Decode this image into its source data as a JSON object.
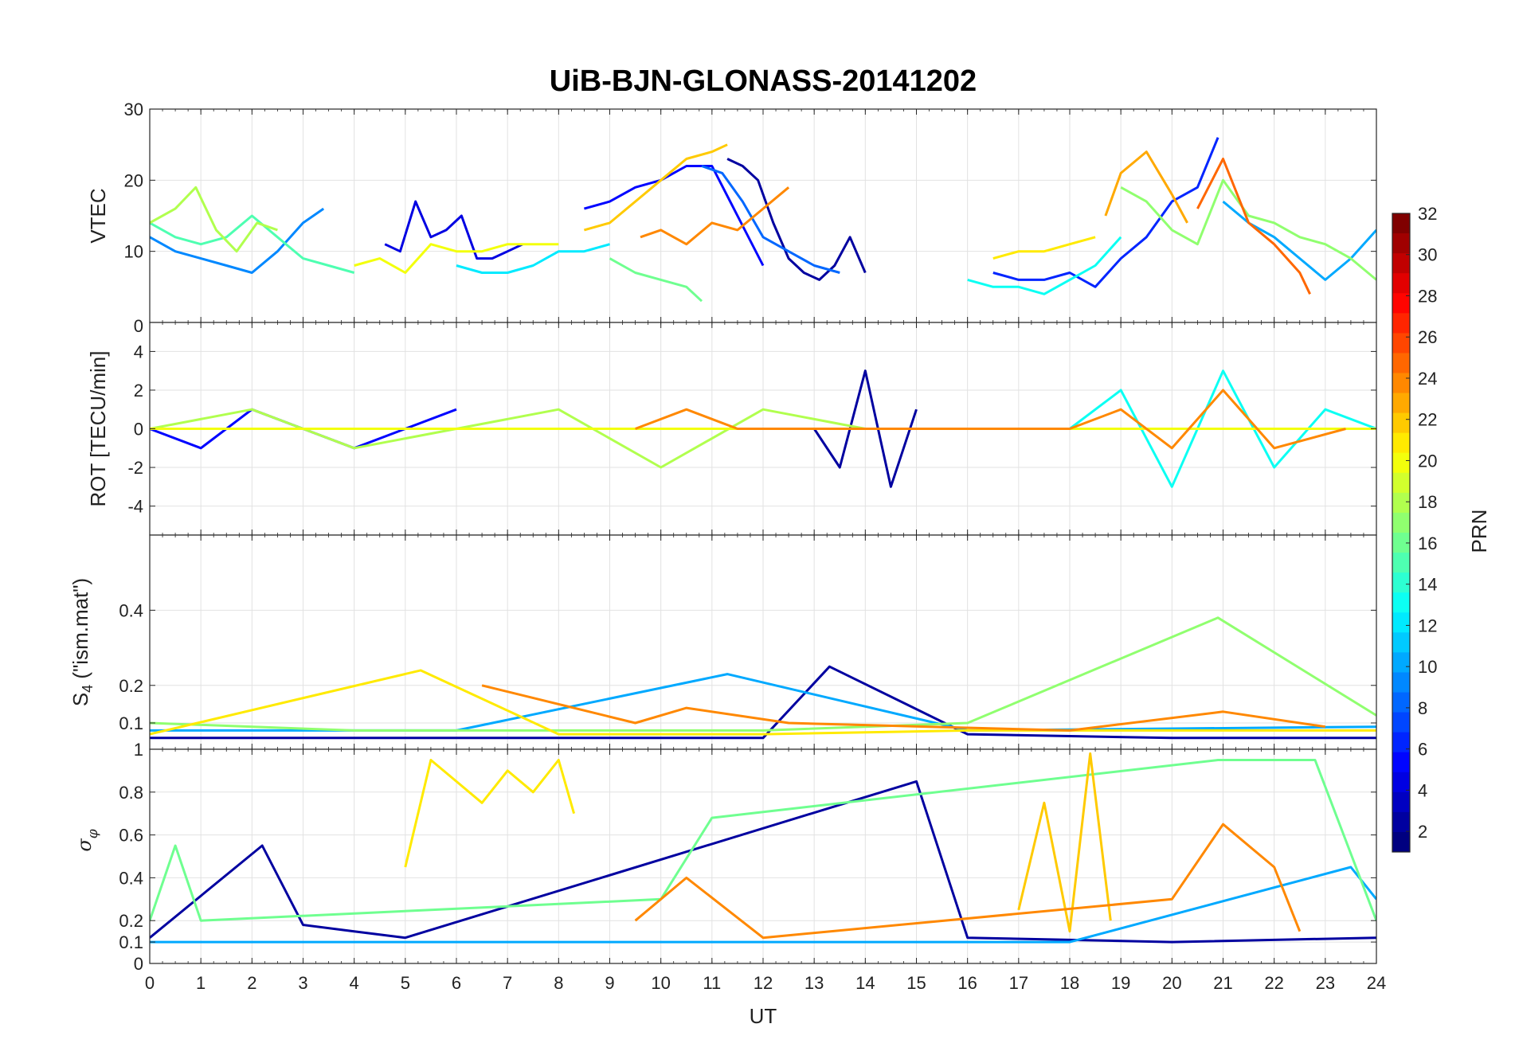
{
  "figure": {
    "title": "UiB-BJN-GLONASS-20141202",
    "xlabel": "UT"
  },
  "colorbar": {
    "label": "PRN",
    "ticks": [
      "2",
      "4",
      "6",
      "8",
      "10",
      "12",
      "14",
      "16",
      "18",
      "20",
      "22",
      "24",
      "26",
      "28",
      "30",
      "32"
    ],
    "range": [
      1,
      32
    ],
    "colormap": "jet",
    "colors": [
      "#00007f",
      "#0000ff",
      "#007fff",
      "#00ffff",
      "#7fff7f",
      "#ffff00",
      "#ff7f00",
      "#ff0000",
      "#7f0000"
    ]
  },
  "chart_data": [
    {
      "type": "line",
      "panel": "vtec",
      "ylabel": "VTEC",
      "xlim": [
        0,
        24
      ],
      "ylim": [
        0,
        30
      ],
      "yticks": [
        "10",
        "20",
        "30"
      ],
      "grid": true,
      "series": [
        {
          "prn": 2,
          "x": [
            11.3,
            11.6,
            11.9,
            12.2,
            12.5,
            12.8,
            13.1,
            13.4,
            13.7,
            14.0
          ],
          "y": [
            23,
            22,
            20,
            14,
            9,
            7,
            6,
            8,
            12,
            7
          ]
        },
        {
          "prn": 4,
          "x": [
            4.6,
            4.9,
            5.2,
            5.5,
            5.8,
            6.1,
            6.4,
            6.7,
            7.0,
            7.3
          ],
          "y": [
            11,
            10,
            17,
            12,
            13,
            15,
            9,
            9,
            10,
            11
          ]
        },
        {
          "prn": 5,
          "x": [
            8.5,
            9.0,
            9.5,
            10.0,
            10.5,
            11.0,
            11.5,
            12.0
          ],
          "y": [
            16,
            17,
            19,
            20,
            22,
            22,
            15,
            8
          ]
        },
        {
          "prn": 6,
          "x": [
            16.5,
            17.0,
            17.5,
            18.0,
            18.5,
            19.0,
            19.5,
            20.0,
            20.5,
            20.9
          ],
          "y": [
            7,
            6,
            6,
            7,
            5,
            9,
            12,
            17,
            19,
            26
          ]
        },
        {
          "prn": 8,
          "x": [
            10.8,
            11.2,
            11.6,
            12.0,
            12.5,
            13.0,
            13.5
          ],
          "y": [
            22,
            21,
            17,
            12,
            10,
            8,
            7
          ]
        },
        {
          "prn": 9,
          "x": [
            0.0,
            0.5,
            1.0,
            1.5,
            2.0,
            2.5,
            3.0,
            3.4
          ],
          "y": [
            12,
            10,
            9,
            8,
            7,
            10,
            14,
            16
          ]
        },
        {
          "prn": 10,
          "x": [
            21.0,
            21.5,
            22.0,
            22.5,
            23.0,
            23.5,
            24.0
          ],
          "y": [
            17,
            14,
            12,
            9,
            6,
            9,
            13
          ]
        },
        {
          "prn": 12,
          "x": [
            6.0,
            6.5,
            7.0,
            7.5,
            8.0,
            8.5,
            9.0
          ],
          "y": [
            8,
            7,
            7,
            8,
            10,
            10,
            11
          ]
        },
        {
          "prn": 13,
          "x": [
            16.0,
            16.5,
            17.0,
            17.5,
            18.0,
            18.5,
            19.0
          ],
          "y": [
            6,
            5,
            5,
            4,
            6,
            8,
            12
          ]
        },
        {
          "prn": 15,
          "x": [
            0.0,
            0.5,
            1.0,
            1.5,
            2.0,
            2.5,
            3.0,
            3.5,
            4.0
          ],
          "y": [
            14,
            12,
            11,
            12,
            15,
            12,
            9,
            8,
            7
          ]
        },
        {
          "prn": 16,
          "x": [
            9.0,
            9.5,
            10.0,
            10.5,
            10.8
          ],
          "y": [
            9,
            7,
            6,
            5,
            3
          ]
        },
        {
          "prn": 17,
          "x": [
            19.0,
            19.5,
            20.0,
            20.5,
            21.0,
            21.5,
            22.0,
            22.5,
            23.0,
            23.5,
            24.0
          ],
          "y": [
            19,
            17,
            13,
            11,
            20,
            15,
            14,
            12,
            11,
            9,
            6
          ]
        },
        {
          "prn": 18,
          "x": [
            0.0,
            0.5,
            0.9,
            1.3,
            1.7,
            2.1,
            2.5
          ],
          "y": [
            14,
            16,
            19,
            13,
            10,
            14,
            13
          ]
        },
        {
          "prn": 20,
          "x": [
            4.0,
            4.5,
            5.0,
            5.5,
            6.0,
            6.5,
            7.0,
            7.5,
            8.0
          ],
          "y": [
            8,
            9,
            7,
            11,
            10,
            10,
            11,
            11,
            11
          ]
        },
        {
          "prn": 21,
          "x": [
            16.5,
            17.0,
            17.5,
            18.0,
            18.5
          ],
          "y": [
            9,
            10,
            10,
            11,
            12
          ]
        },
        {
          "prn": 22,
          "x": [
            8.5,
            9.0,
            9.5,
            10.0,
            10.5,
            11.0,
            11.3
          ],
          "y": [
            13,
            14,
            17,
            20,
            23,
            24,
            25
          ]
        },
        {
          "prn": 23,
          "x": [
            18.7,
            19.0,
            19.5,
            20.0,
            20.3
          ],
          "y": [
            15,
            21,
            24,
            18,
            14
          ]
        },
        {
          "prn": 24,
          "x": [
            9.6,
            10.0,
            10.5,
            11.0,
            11.5,
            12.0,
            12.5
          ],
          "y": [
            12,
            13,
            11,
            14,
            13,
            16,
            19
          ]
        },
        {
          "prn": 25,
          "x": [
            20.5,
            21.0,
            21.5,
            22.0,
            22.5,
            22.7
          ],
          "y": [
            16,
            23,
            14,
            11,
            7,
            4
          ]
        }
      ]
    },
    {
      "type": "line",
      "panel": "rot",
      "ylabel": "ROT [TECU/min]",
      "xlim": [
        0,
        24
      ],
      "ylim": [
        -5.5,
        5.5
      ],
      "yticks": [
        "-4",
        "-2",
        "0",
        "2",
        "4"
      ],
      "grid": true,
      "series": [
        {
          "prn": 2,
          "x": [
            13.0,
            13.5,
            14.0,
            14.5,
            15.0
          ],
          "y": [
            0,
            -2,
            3,
            -3,
            1
          ]
        },
        {
          "prn": 5,
          "x": [
            0.0,
            1.0,
            2.0,
            3.0,
            4.0,
            5.0,
            6.0
          ],
          "y": [
            0,
            -1,
            1,
            0,
            -1,
            0,
            1
          ]
        },
        {
          "prn": 13,
          "x": [
            18.0,
            19.0,
            20.0,
            21.0,
            22.0,
            23.0,
            24.0
          ],
          "y": [
            0,
            2,
            -3,
            3,
            -2,
            1,
            0
          ]
        },
        {
          "prn": 18,
          "x": [
            0.0,
            2.0,
            4.0,
            6.0,
            8.0,
            10.0,
            12.0,
            14.0,
            16.0
          ],
          "y": [
            0,
            1,
            -1,
            0,
            1,
            -2,
            1,
            0,
            0
          ]
        },
        {
          "prn": 20,
          "x": [
            0.0,
            4.0,
            8.0,
            12.0,
            16.0,
            20.0,
            24.0
          ],
          "y": [
            0,
            0,
            0,
            0,
            0,
            0,
            0
          ]
        },
        {
          "prn": 24,
          "x": [
            9.5,
            10.5,
            11.5,
            12.5,
            18.0,
            19.0,
            20.0,
            21.0,
            22.0,
            23.4
          ],
          "y": [
            0,
            1,
            0,
            0,
            0,
            1,
            -1,
            2,
            -1,
            0
          ]
        }
      ]
    },
    {
      "type": "line",
      "panel": "s4",
      "ylabel": "S4 (\"ism.mat\")",
      "xlim": [
        0,
        24
      ],
      "ylim": [
        0.03,
        0.6
      ],
      "yticks": [
        "0.1",
        "0.2",
        "0.4"
      ],
      "grid": true,
      "series": [
        {
          "prn": 2,
          "x": [
            0.0,
            4.0,
            8.0,
            12.0,
            13.3,
            16.0,
            20.0,
            24.0
          ],
          "y": [
            0.06,
            0.06,
            0.06,
            0.06,
            0.25,
            0.07,
            0.06,
            0.06
          ]
        },
        {
          "prn": 10,
          "x": [
            0.0,
            6.0,
            11.3,
            16.0,
            24.0
          ],
          "y": [
            0.08,
            0.08,
            0.23,
            0.08,
            0.09
          ]
        },
        {
          "prn": 17,
          "x": [
            0.0,
            4.0,
            8.0,
            12.0,
            16.0,
            20.9,
            24.0
          ],
          "y": [
            0.1,
            0.08,
            0.08,
            0.08,
            0.1,
            0.38,
            0.12
          ]
        },
        {
          "prn": 21,
          "x": [
            0.0,
            5.3,
            8.0,
            12.0,
            16.0,
            24.0
          ],
          "y": [
            0.07,
            0.24,
            0.07,
            0.07,
            0.08,
            0.08
          ]
        },
        {
          "prn": 24,
          "x": [
            6.5,
            9.5,
            10.5,
            12.5,
            18.0,
            21.0,
            23.0
          ],
          "y": [
            0.2,
            0.1,
            0.14,
            0.1,
            0.08,
            0.13,
            0.09
          ]
        }
      ]
    },
    {
      "type": "line",
      "panel": "sigma_phi",
      "ylabel": "σφ",
      "xlim": [
        0,
        24
      ],
      "ylim": [
        0,
        1
      ],
      "yticks": [
        "0",
        "0.1",
        "0.2",
        "0.4",
        "0.6",
        "0.8",
        "1"
      ],
      "grid": true,
      "series": [
        {
          "prn": 2,
          "x": [
            0.0,
            2.2,
            3.0,
            4.0,
            5.0,
            15.0,
            16.0,
            20.0,
            24.0
          ],
          "y": [
            0.12,
            0.55,
            0.18,
            0.15,
            0.12,
            0.85,
            0.12,
            0.1,
            0.12
          ]
        },
        {
          "prn": 10,
          "x": [
            0.0,
            6.0,
            12.0,
            18.0,
            23.5,
            24.0
          ],
          "y": [
            0.1,
            0.1,
            0.1,
            0.1,
            0.45,
            0.3
          ]
        },
        {
          "prn": 16,
          "x": [
            0.0,
            0.5,
            1.0,
            10.0,
            11.0,
            20.9,
            22.8,
            24.0
          ],
          "y": [
            0.2,
            0.55,
            0.2,
            0.3,
            0.68,
            0.95,
            0.95,
            0.2
          ]
        },
        {
          "prn": 21,
          "x": [
            5.0,
            5.5,
            6.0,
            6.5,
            7.0,
            7.5,
            8.0,
            8.3
          ],
          "y": [
            0.45,
            0.95,
            0.85,
            0.75,
            0.9,
            0.8,
            0.95,
            0.7
          ]
        },
        {
          "prn": 22,
          "x": [
            17.0,
            17.5,
            18.0,
            18.4,
            18.8
          ],
          "y": [
            0.25,
            0.75,
            0.15,
            0.98,
            0.2
          ]
        },
        {
          "prn": 24,
          "x": [
            9.5,
            10.5,
            12.0,
            20.0,
            21.0,
            22.0,
            22.5
          ],
          "y": [
            0.2,
            0.4,
            0.12,
            0.3,
            0.65,
            0.45,
            0.15
          ]
        }
      ]
    }
  ]
}
